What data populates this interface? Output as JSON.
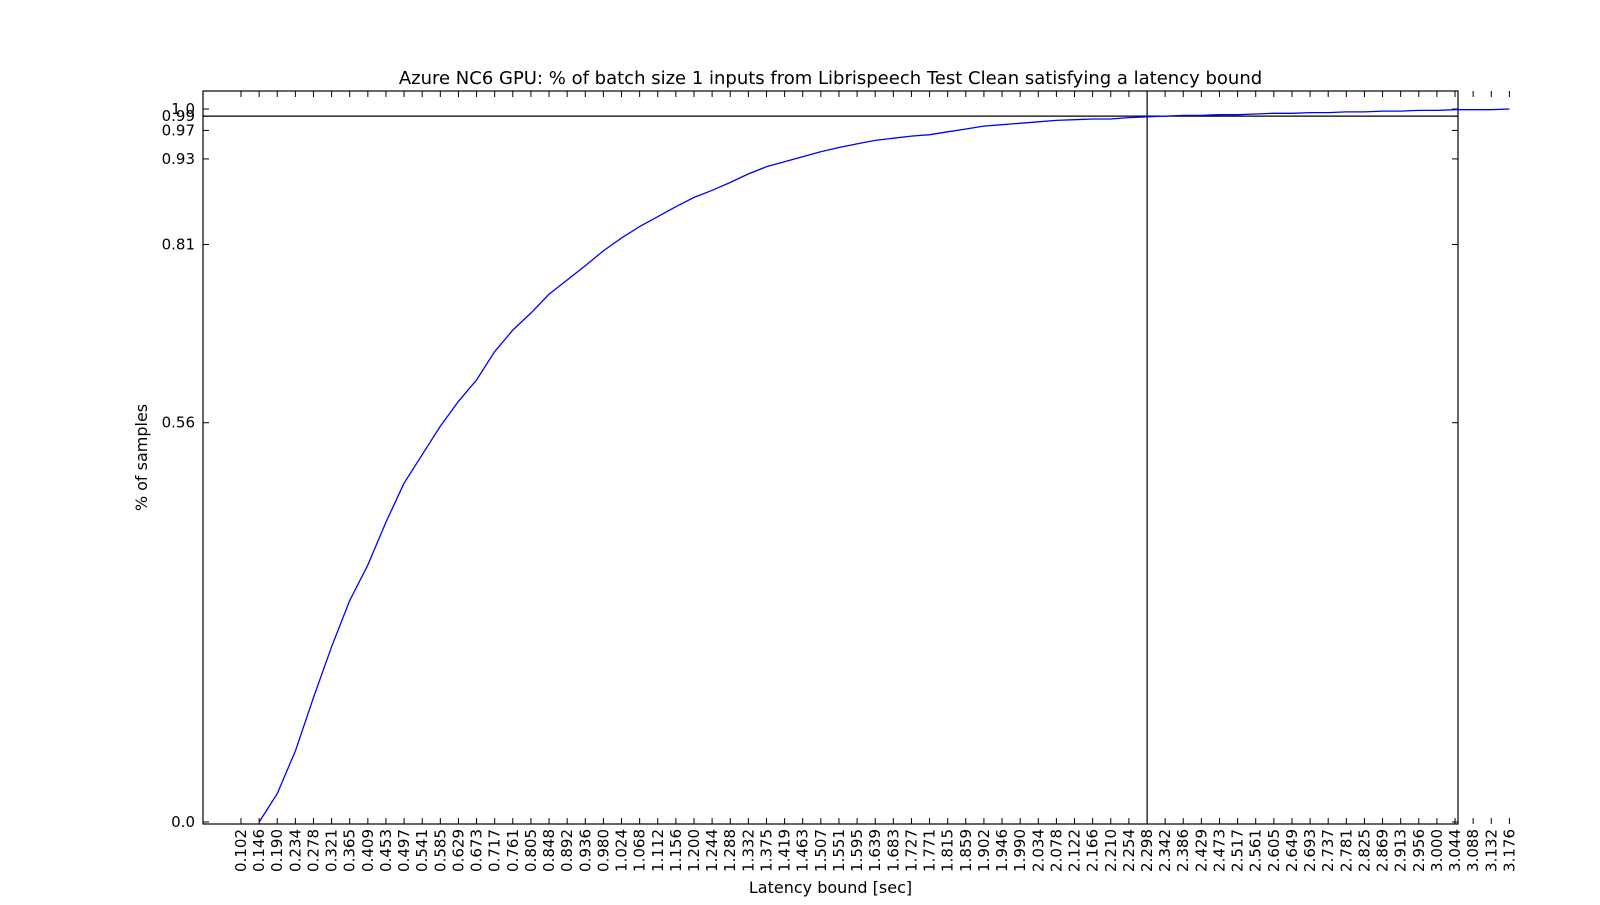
{
  "chart_data": {
    "type": "line",
    "title": "Azure NC6 GPU: % of batch size 1 inputs from Librispeech Test Clean satisfying a latency bound",
    "xlabel": "Latency bound [sec]",
    "ylabel": "% of samples",
    "xlim": [
      0.102,
      3.176
    ],
    "ylim": [
      0.0,
      1.0
    ],
    "x_ticks": [
      "0.102",
      "0.146",
      "0.190",
      "0.234",
      "0.278",
      "0.321",
      "0.365",
      "0.409",
      "0.453",
      "0.497",
      "0.541",
      "0.585",
      "0.629",
      "0.673",
      "0.717",
      "0.761",
      "0.805",
      "0.848",
      "0.892",
      "0.936",
      "0.980",
      "1.024",
      "1.068",
      "1.112",
      "1.156",
      "1.200",
      "1.244",
      "1.288",
      "1.332",
      "1.375",
      "1.419",
      "1.463",
      "1.507",
      "1.551",
      "1.595",
      "1.639",
      "1.683",
      "1.727",
      "1.771",
      "1.815",
      "1.859",
      "1.902",
      "1.946",
      "1.990",
      "2.034",
      "2.078",
      "2.122",
      "2.166",
      "2.210",
      "2.254",
      "2.298",
      "2.342",
      "2.386",
      "2.429",
      "2.473",
      "2.517",
      "2.561",
      "2.605",
      "2.649",
      "2.693",
      "2.737",
      "2.781",
      "2.825",
      "2.869",
      "2.913",
      "2.956",
      "3.000",
      "3.044",
      "3.088",
      "3.132",
      "3.176"
    ],
    "y_ticks": [
      "0.0",
      "0.56",
      "0.81",
      "0.93",
      "0.97",
      "0.99",
      "1.0"
    ],
    "y_tick_values": [
      0.0,
      0.56,
      0.81,
      0.93,
      0.97,
      0.99,
      1.0
    ],
    "series": [
      {
        "color": "#0000ff",
        "x": [
          0.146,
          0.19,
          0.234,
          0.278,
          0.321,
          0.365,
          0.409,
          0.453,
          0.497,
          0.541,
          0.585,
          0.629,
          0.673,
          0.717,
          0.761,
          0.805,
          0.848,
          0.892,
          0.936,
          0.98,
          1.024,
          1.068,
          1.112,
          1.156,
          1.2,
          1.244,
          1.288,
          1.332,
          1.375,
          1.419,
          1.463,
          1.507,
          1.551,
          1.595,
          1.639,
          1.683,
          1.727,
          1.771,
          1.815,
          1.859,
          1.902,
          1.946,
          1.99,
          2.034,
          2.078,
          2.122,
          2.166,
          2.21,
          2.254,
          2.298,
          2.342,
          2.386,
          2.429,
          2.473,
          2.517,
          2.561,
          2.605,
          2.649,
          2.693,
          2.737,
          2.781,
          2.825,
          2.869,
          2.913,
          2.956,
          3.0,
          3.044,
          3.088,
          3.132,
          3.176
        ],
        "y": [
          0.0,
          0.04,
          0.1,
          0.175,
          0.245,
          0.31,
          0.36,
          0.42,
          0.475,
          0.515,
          0.555,
          0.59,
          0.62,
          0.66,
          0.69,
          0.714,
          0.74,
          0.76,
          0.78,
          0.801,
          0.819,
          0.835,
          0.849,
          0.863,
          0.876,
          0.886,
          0.897,
          0.909,
          0.919,
          0.926,
          0.933,
          0.94,
          0.946,
          0.951,
          0.956,
          0.959,
          0.962,
          0.964,
          0.968,
          0.972,
          0.976,
          0.978,
          0.98,
          0.982,
          0.984,
          0.985,
          0.986,
          0.986,
          0.988,
          0.989,
          0.99,
          0.991,
          0.991,
          0.992,
          0.992,
          0.993,
          0.994,
          0.994,
          0.995,
          0.995,
          0.996,
          0.996,
          0.997,
          0.997,
          0.998,
          0.998,
          0.999,
          0.999,
          0.999,
          1.0
        ]
      }
    ],
    "reference_lines": {
      "horizontal_y": 0.99,
      "vertical_x": 2.298
    },
    "grid": false,
    "line_color": "#0000ff",
    "axis_color": "#000000"
  }
}
